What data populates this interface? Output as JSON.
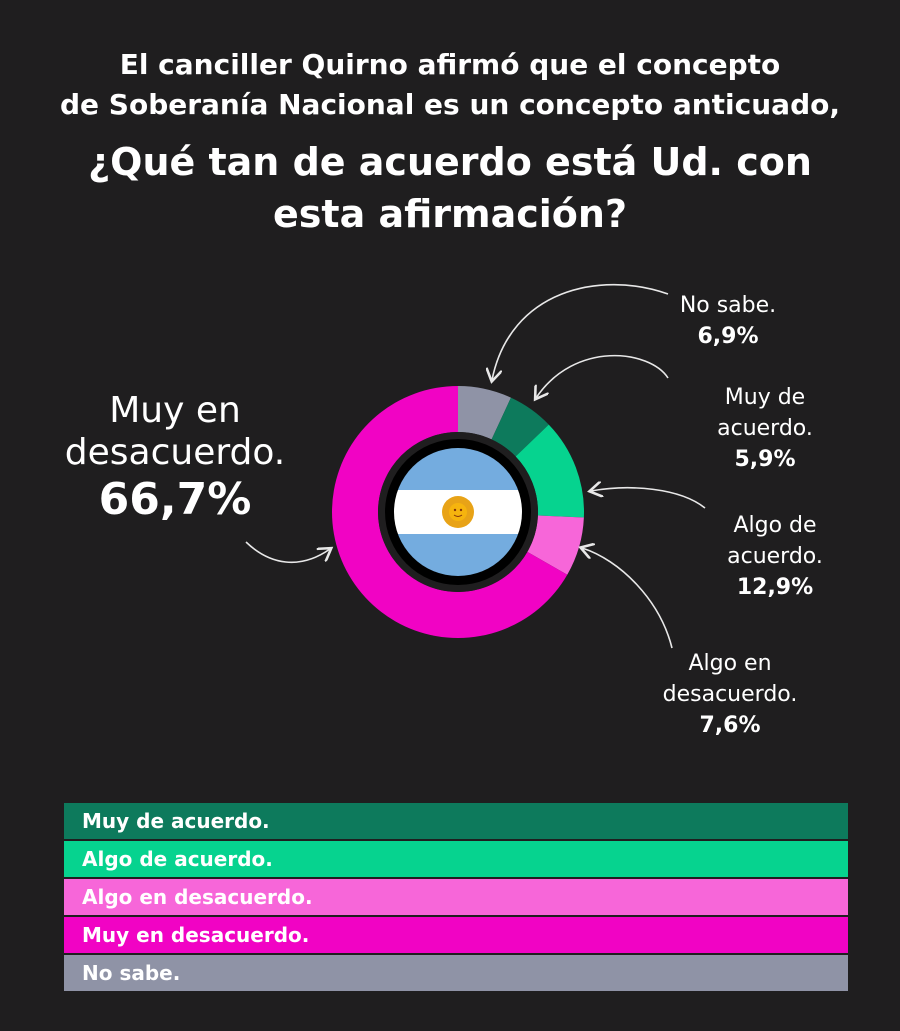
{
  "header": {
    "subtitle_line1": "El canciller Quirno afirmó que el concepto",
    "subtitle_line2": "de Soberanía Nacional es un concepto anticuado,",
    "question_line1": "¿Qué tan de acuerdo está Ud. con",
    "question_line2": "esta afirmación?"
  },
  "chart_data": {
    "type": "pie",
    "style": "donut",
    "title": "¿Qué tan de acuerdo está Ud. con esta afirmación?",
    "slices": [
      {
        "label": "No sabe.",
        "value": 6.9,
        "display": "6,9%",
        "color": "#8f93a6"
      },
      {
        "label": "Muy de acuerdo.",
        "value": 5.9,
        "display": "5,9%",
        "color": "#0d7a5c"
      },
      {
        "label": "Algo de acuerdo.",
        "value": 12.9,
        "display": "12,9%",
        "color": "#06d38f"
      },
      {
        "label": "Algo en desacuerdo.",
        "value": 7.6,
        "display": "7,6%",
        "color": "#f766d9"
      },
      {
        "label": "Muy en desacuerdo.",
        "value": 66.7,
        "display": "66,7%",
        "color": "#f103c4"
      }
    ],
    "center_image": "argentina-flag"
  },
  "labels": {
    "no_sabe": {
      "line1": "No sabe.",
      "pct": "6,9%"
    },
    "muy_acuerdo": {
      "line1": "Muy de",
      "line2": "acuerdo.",
      "pct": "5,9%"
    },
    "algo_acuerdo": {
      "line1": "Algo de",
      "line2": "acuerdo.",
      "pct": "12,9%"
    },
    "algo_desacuerdo": {
      "line1": "Algo en",
      "line2": "desacuerdo.",
      "pct": "7,6%"
    },
    "muy_desacuerdo": {
      "line1": "Muy en",
      "line2": "desacuerdo.",
      "pct": "66,7%"
    }
  },
  "legend": [
    {
      "label": "Muy de acuerdo.",
      "color": "#0d7a5c"
    },
    {
      "label": "Algo de acuerdo.",
      "color": "#06d38f"
    },
    {
      "label": "Algo en desacuerdo.",
      "color": "#f766d9"
    },
    {
      "label": "Muy en desacuerdo.",
      "color": "#f103c4"
    },
    {
      "label": "No sabe.",
      "color": "#8f93a6"
    }
  ]
}
